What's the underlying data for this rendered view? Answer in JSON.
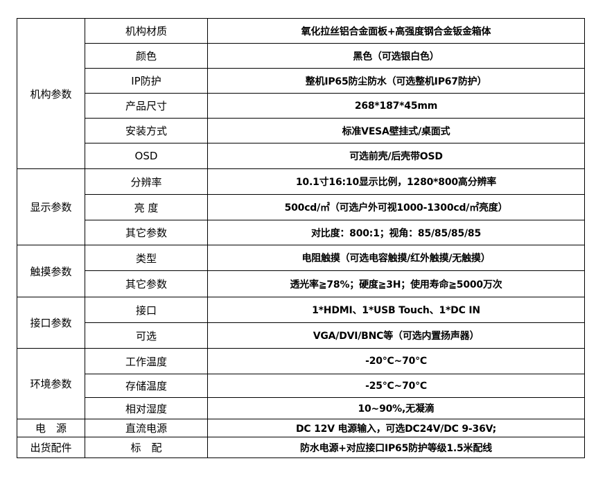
{
  "groups": [
    {
      "name": "机构参数",
      "rows": [
        {
          "key": "机构材质",
          "value": "氧化拉丝铝合金面板+高强度钢合金钣金箱体"
        },
        {
          "key": "颜色",
          "value": "黑色（可选银白色）"
        },
        {
          "key": "IP防护",
          "value": "整机IP65防尘防水（可选整机IP67防护）"
        },
        {
          "key": "产品尺寸",
          "value": "268*187*45mm"
        },
        {
          "key": "安装方式",
          "value": "标准VESA壁挂式/桌面式"
        },
        {
          "key": "OSD",
          "value": "可选前壳/后壳带OSD"
        }
      ]
    },
    {
      "name": "显示参数",
      "rows": [
        {
          "key": "分辨率",
          "value": "10.1寸16:10显示比例，1280*800高分辨率"
        },
        {
          "key": "亮 度",
          "value": "500cd/㎡（可选户外可视1000-1300cd/㎡亮度）"
        },
        {
          "key": "其它参数",
          "value": "对比度：800:1；视角：85/85/85/85"
        }
      ]
    },
    {
      "name": "触摸参数",
      "rows": [
        {
          "key": "类型",
          "value": "电阻触摸（可选电容触摸/红外触摸/无触摸）"
        },
        {
          "key": "其它参数",
          "value": "透光率≧78%；硬度≧3H；使用寿命≧5000万次"
        }
      ]
    },
    {
      "name": "接口参数",
      "rows": [
        {
          "key": "接口",
          "value": "1*HDMI、1*USB Touch、1*DC IN"
        },
        {
          "key": "可选",
          "value": "VGA/DVI/BNC等（可选内置扬声器）"
        }
      ]
    },
    {
      "name": "环境参数",
      "rows": [
        {
          "key": "工作温度",
          "value": "-20℃~70℃"
        },
        {
          "key": "存储温度",
          "value": "-25℃~70℃"
        },
        {
          "key": "相对湿度",
          "value": "10~90%,无凝滴"
        }
      ]
    },
    {
      "name": "电　源",
      "rows": [
        {
          "key": "直流电源",
          "value": "DC 12V 电源输入，可选DC24V/DC 9-36V;"
        }
      ]
    },
    {
      "name": "出货配件",
      "rows": [
        {
          "key": "标　配",
          "value": "防水电源+对应接口IP65防护等级1.5米配线"
        }
      ]
    }
  ]
}
